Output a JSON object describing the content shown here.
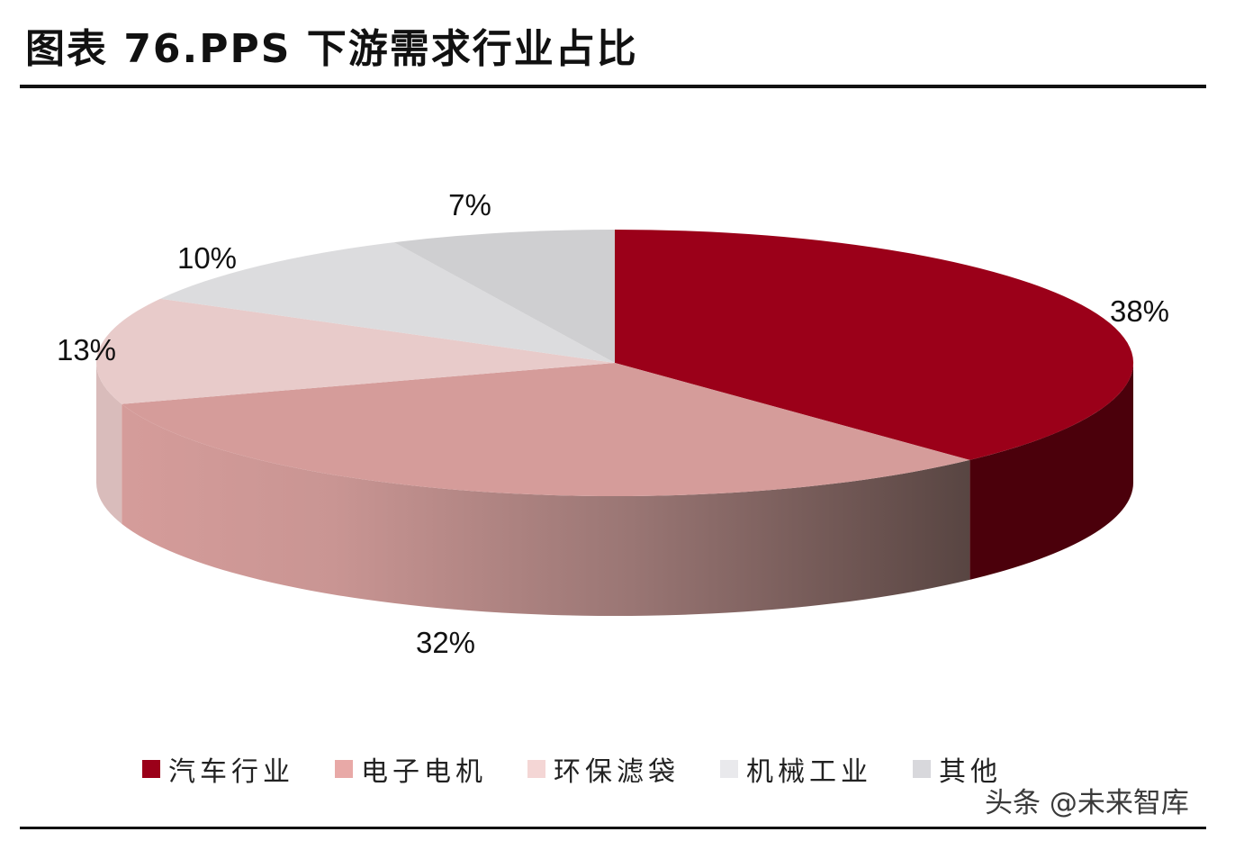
{
  "title": "图表 76.PPS 下游需求行业占比",
  "watermark": "头条 @未来智库",
  "chart_data": {
    "type": "pie",
    "title": "图表 76.PPS 下游需求行业占比",
    "categories": [
      "汽车行业",
      "电子电机",
      "环保滤袋",
      "机械工业",
      "其他"
    ],
    "values": [
      38,
      32,
      13,
      10,
      7
    ],
    "labels": [
      "38%",
      "32%",
      "13%",
      "10%",
      "7%"
    ],
    "colors": [
      "#9b0019",
      "#d59c9a",
      "#e8cbca",
      "#dcdcde",
      "#cfcfd1"
    ],
    "legend_position": "bottom",
    "style": "3d-tilted"
  }
}
